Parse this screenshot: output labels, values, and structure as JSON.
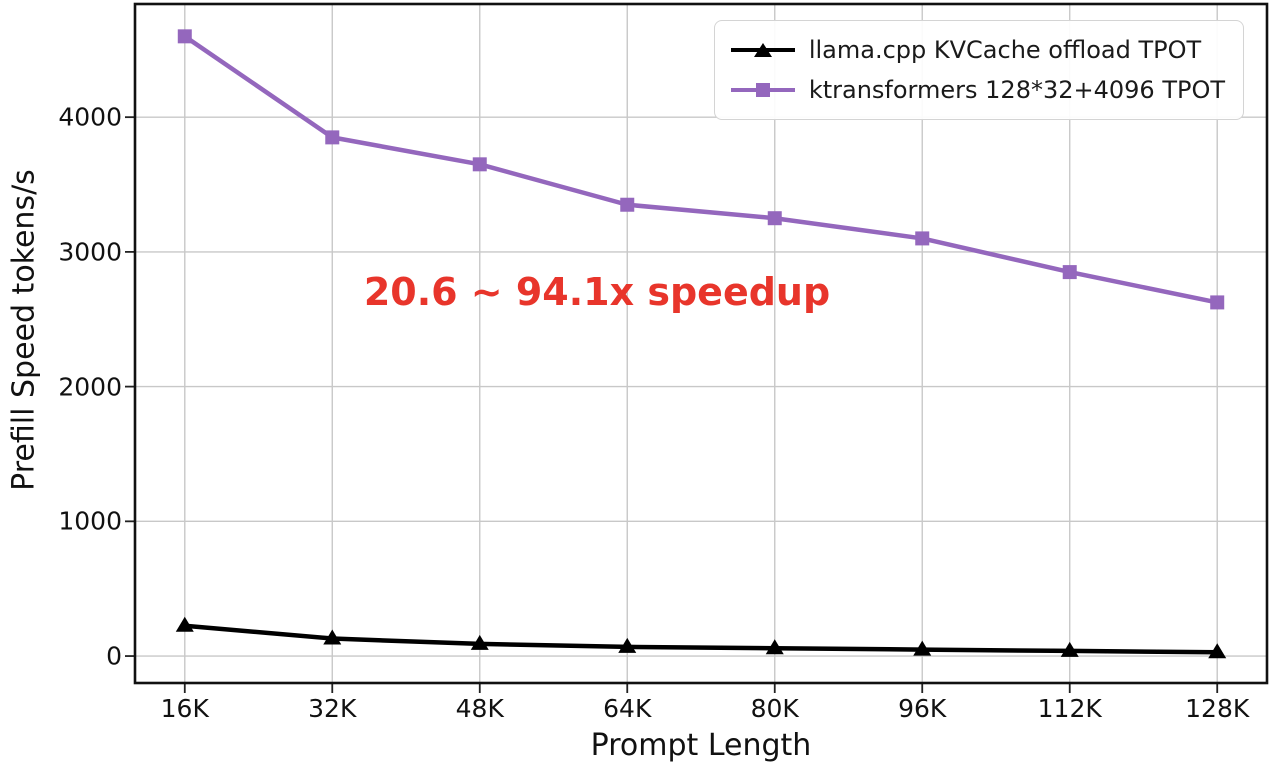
{
  "chart_data": {
    "type": "line",
    "xlabel": "Prompt Length",
    "ylabel": "Prefill Speed tokens/s",
    "categories": [
      "16K",
      "32K",
      "48K",
      "64K",
      "80K",
      "96K",
      "112K",
      "128K"
    ],
    "x_values_k": [
      16,
      32,
      48,
      64,
      80,
      96,
      112,
      128
    ],
    "xlim_k": [
      10.6,
      133.4
    ],
    "ylim": [
      -200,
      4840
    ],
    "y_ticks": [
      0,
      1000,
      2000,
      3000,
      4000
    ],
    "y_ticklabels": [
      "0",
      "1000",
      "2000",
      "3000",
      "4000"
    ],
    "grid": true,
    "legend_position": "upper right",
    "series": [
      {
        "name": "llama.cpp KVCache offload TPOT",
        "color": "#000000",
        "marker": "triangle",
        "values": [
          225,
          130,
          90,
          68,
          58,
          48,
          38,
          28
        ]
      },
      {
        "name": "ktransformers 128*32+4096 TPOT",
        "color": "#9467bd",
        "marker": "square",
        "values": [
          4600,
          3850,
          3650,
          3350,
          3250,
          3100,
          2850,
          2625
        ]
      }
    ],
    "annotation": {
      "text": "20.6 ~ 94.1x speedup",
      "color": "#e8352b"
    },
    "colors": {
      "grid": "#c8c8c8",
      "spine": "#111111",
      "tick": "#222222"
    }
  }
}
